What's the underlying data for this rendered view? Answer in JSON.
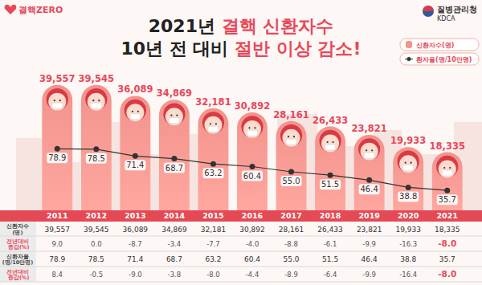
{
  "header": {
    "logo": "결핵ZERO",
    "agency": "질병관리청",
    "agency_en": "KDCA"
  },
  "chart_data": {
    "type": "bar",
    "title": "2021년 결핵 신환자수",
    "subtitle": "10년 전 대비 절반 이상 감소!",
    "categories": [
      "2011",
      "2012",
      "2013",
      "2014",
      "2015",
      "2016",
      "2017",
      "2018",
      "2019",
      "2020",
      "2021"
    ],
    "series": [
      {
        "name": "신환자수(명)",
        "type": "bar",
        "color": "#f2938c",
        "values": [
          39557,
          39545,
          36089,
          34869,
          32181,
          30892,
          28161,
          26433,
          23821,
          19933,
          18335
        ],
        "value_labels": [
          "39,557",
          "39,545",
          "36,089",
          "34,869",
          "32,181",
          "30,892",
          "28,161",
          "26,433",
          "23,821",
          "19,933",
          "18,335"
        ]
      },
      {
        "name": "환자율(명/10만명)",
        "type": "line",
        "axis": "y2",
        "color": "#333333",
        "marker": "circle",
        "line_style": "solid",
        "values": [
          78.9,
          78.5,
          71.4,
          68.7,
          63.2,
          60.4,
          55.0,
          51.5,
          46.4,
          38.8,
          35.7
        ],
        "value_labels": [
          "78.9",
          "78.5",
          "71.4",
          "68.7",
          "63.2",
          "60.4",
          "55.0",
          "51.5",
          "46.4",
          "38.8",
          "35.7"
        ]
      }
    ],
    "ylim": [
      0,
      41000
    ],
    "y2lim": [
      15,
      150
    ],
    "data_labels": true,
    "tick_labels": "x",
    "grid": false,
    "legend": "upper right"
  },
  "table": {
    "rows": [
      {
        "label": "신환자수(명)",
        "cells": [
          "39,557",
          "39,545",
          "36,089",
          "34,869",
          "32,181",
          "30,892",
          "28,161",
          "26,433",
          "23,821",
          "19,933",
          "18,335"
        ]
      },
      {
        "label": "전년대비 증감(%)",
        "cells": [
          "9.0",
          "0.0",
          "-8.7",
          "-3.4",
          "-7.7",
          "-4.0",
          "-8.8",
          "-6.1",
          "-9.9",
          "-16.3",
          "-8.0"
        ]
      },
      {
        "label": "신환자율(명/10만명)",
        "cells": [
          "78.9",
          "78.5",
          "71.4",
          "68.7",
          "63.2",
          "60.4",
          "55.0",
          "51.5",
          "46.4",
          "38.8",
          "35.7"
        ]
      },
      {
        "label": "전년대비 증감(%)",
        "cells": [
          "8.4",
          "-0.5",
          "-9.0",
          "-3.8",
          "-8.0",
          "-4.4",
          "-8.9",
          "-6.4",
          "-9.9",
          "-16.4",
          "-8.0"
        ]
      }
    ]
  }
}
